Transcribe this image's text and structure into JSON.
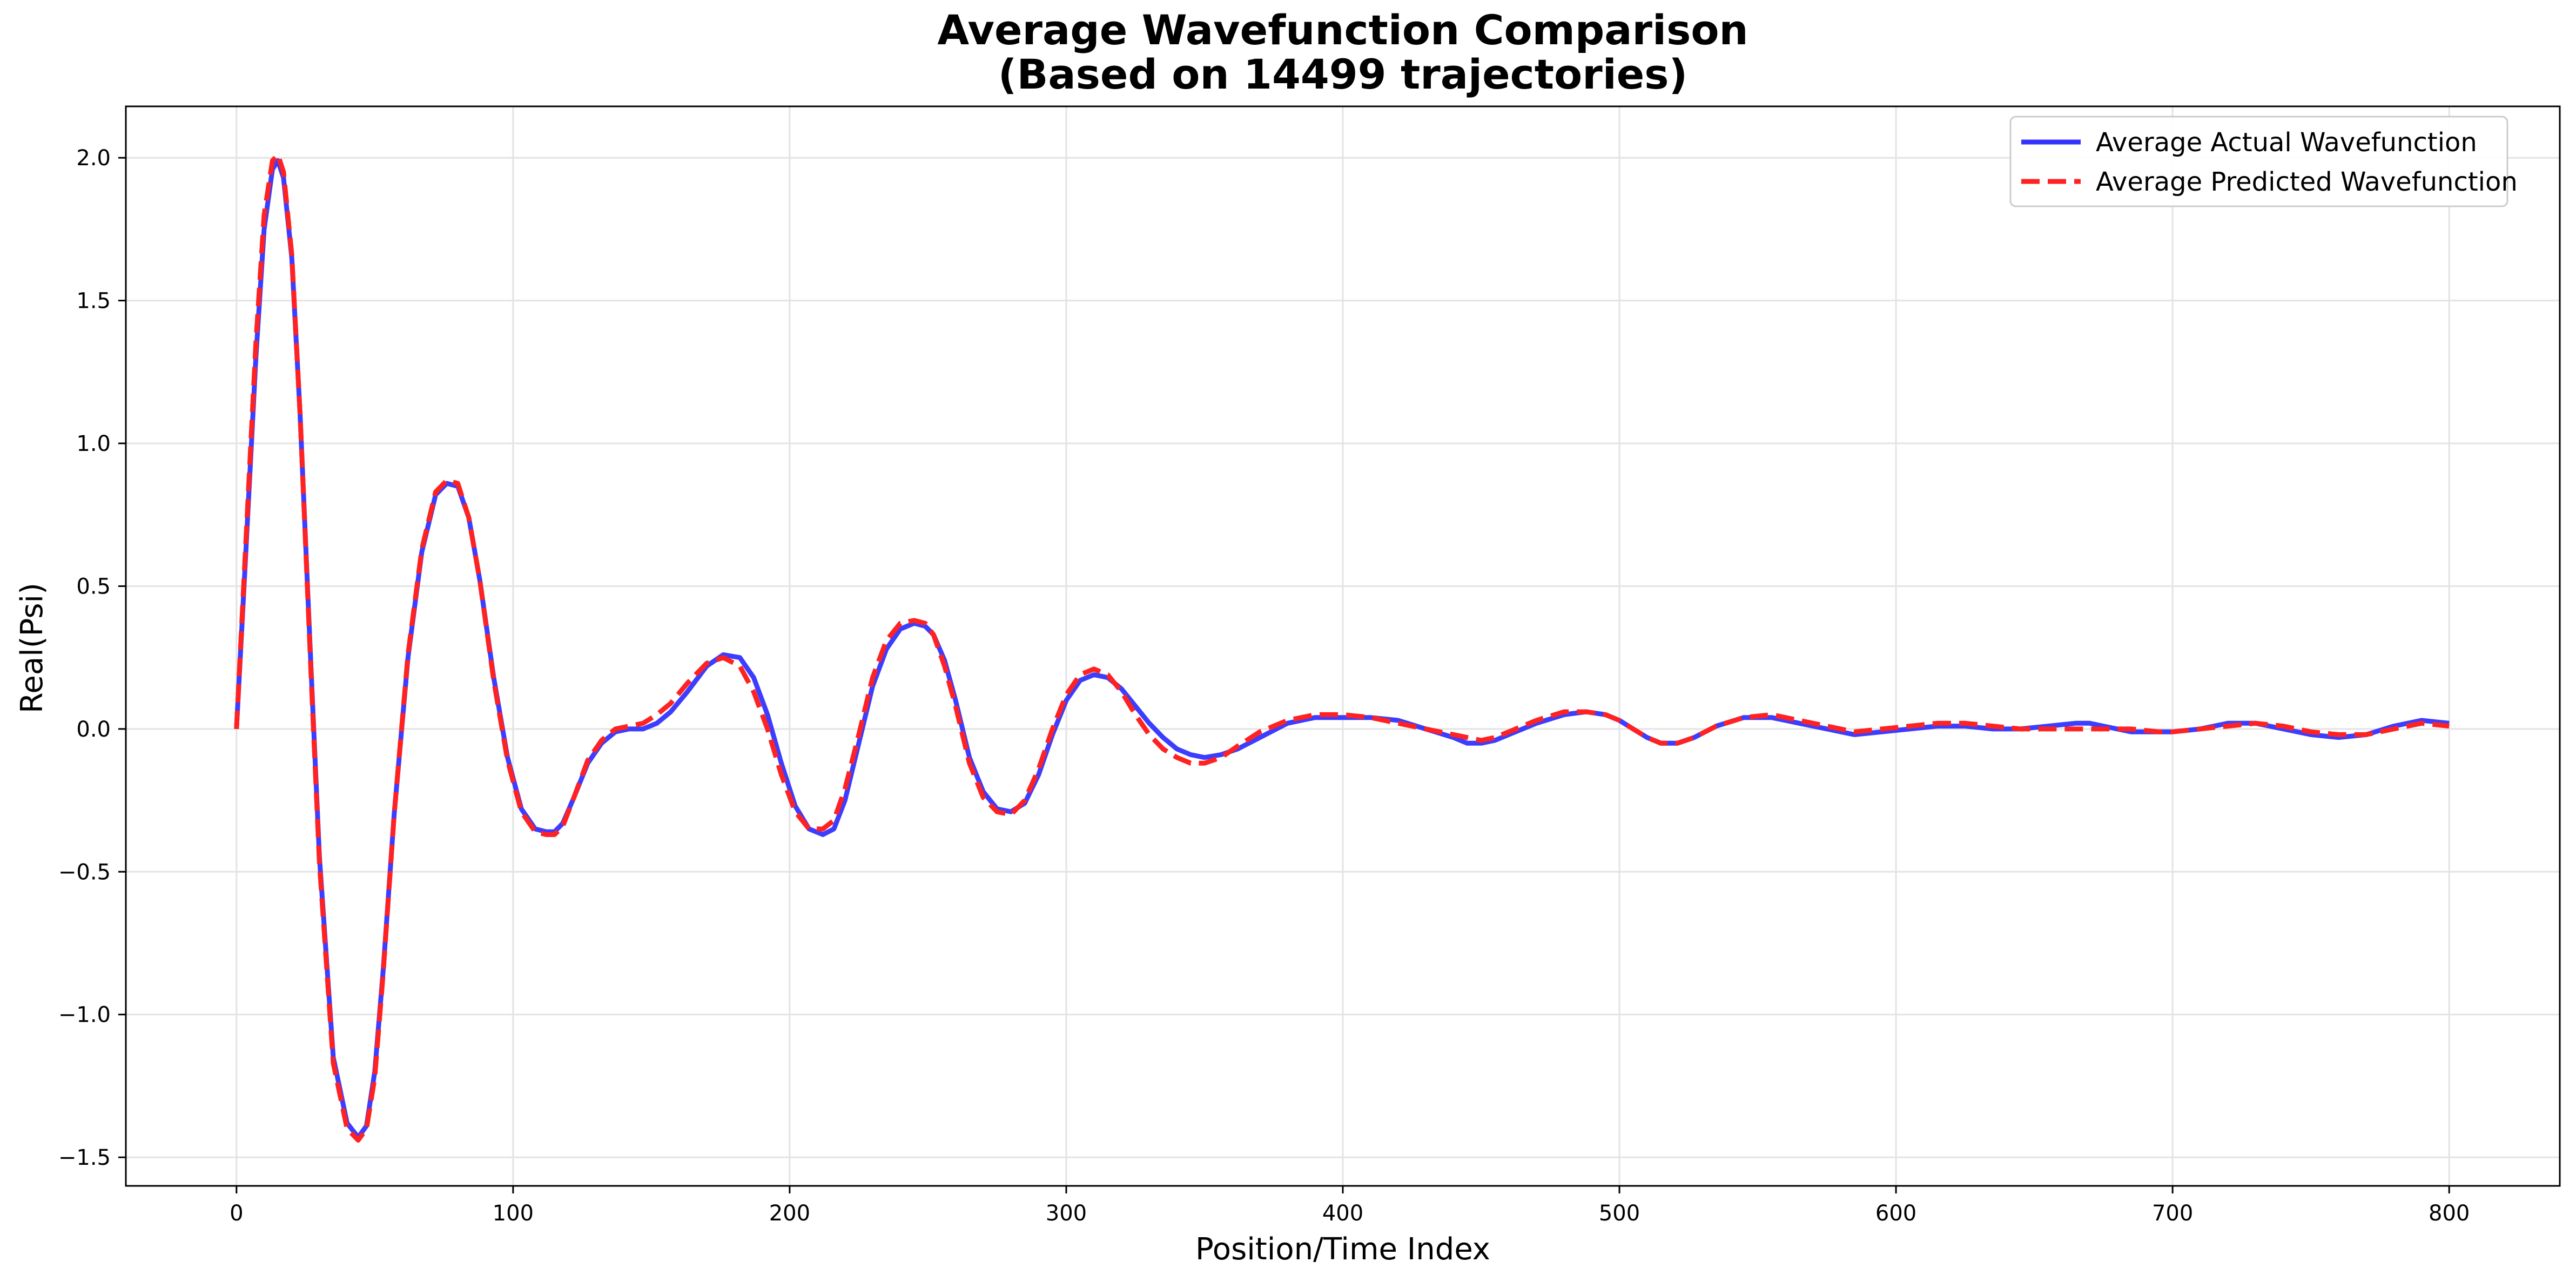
{
  "chart_data": {
    "type": "line",
    "title": "Average Wavefunction Comparison",
    "subtitle": "(Based on 14499 trajectories)",
    "xlabel": "Position/Time Index",
    "ylabel": "Real(Psi)",
    "xlim": [
      -40,
      840
    ],
    "ylim": [
      -1.6,
      2.18
    ],
    "xticks": [
      0,
      100,
      200,
      300,
      400,
      500,
      600,
      700,
      800
    ],
    "xtick_labels": [
      "0",
      "100",
      "200",
      "300",
      "400",
      "500",
      "600",
      "700",
      "800"
    ],
    "yticks": [
      -1.5,
      -1.0,
      -0.5,
      0.0,
      0.5,
      1.0,
      1.5,
      2.0
    ],
    "ytick_labels": [
      "−1.5",
      "−1.0",
      "−0.5",
      "0.0",
      "0.5",
      "1.0",
      "1.5",
      "2.0"
    ],
    "grid": true,
    "legend_position": "top-right",
    "series": [
      {
        "name": "Average Actual Wavefunction",
        "color": "#3333ff",
        "style": "solid",
        "x": [
          0,
          3,
          7,
          10,
          13,
          15,
          17,
          20,
          23,
          27,
          30,
          35,
          40,
          44,
          47,
          50,
          53,
          57,
          62,
          67,
          72,
          76,
          80,
          84,
          88,
          93,
          98,
          103,
          108,
          112,
          115,
          118,
          122,
          127,
          132,
          137,
          142,
          147,
          152,
          157,
          163,
          170,
          176,
          182,
          187,
          192,
          197,
          202,
          207,
          212,
          216,
          220,
          225,
          230,
          235,
          240,
          245,
          249,
          252,
          256,
          260,
          265,
          270,
          275,
          280,
          285,
          290,
          295,
          300,
          305,
          310,
          315,
          320,
          325,
          330,
          335,
          340,
          345,
          350,
          356,
          362,
          370,
          380,
          390,
          400,
          410,
          420,
          430,
          440,
          445,
          450,
          455,
          460,
          470,
          480,
          488,
          495,
          500,
          505,
          510,
          515,
          521,
          527,
          535,
          545,
          555,
          565,
          575,
          585,
          595,
          605,
          615,
          625,
          635,
          645,
          655,
          665,
          670,
          675,
          685,
          695,
          700,
          710,
          720,
          730,
          740,
          750,
          760,
          770,
          780,
          790,
          800
        ],
        "y": [
          0.0,
          0.55,
          1.3,
          1.75,
          1.96,
          1.99,
          1.93,
          1.65,
          1.1,
          0.2,
          -0.45,
          -1.15,
          -1.38,
          -1.43,
          -1.39,
          -1.2,
          -0.85,
          -0.3,
          0.25,
          0.62,
          0.82,
          0.86,
          0.85,
          0.74,
          0.52,
          0.18,
          -0.1,
          -0.28,
          -0.35,
          -0.36,
          -0.36,
          -0.33,
          -0.24,
          -0.12,
          -0.05,
          -0.01,
          0.0,
          0.0,
          0.02,
          0.06,
          0.13,
          0.22,
          0.26,
          0.25,
          0.18,
          0.05,
          -0.12,
          -0.27,
          -0.35,
          -0.37,
          -0.35,
          -0.25,
          -0.05,
          0.15,
          0.28,
          0.35,
          0.37,
          0.36,
          0.33,
          0.24,
          0.1,
          -0.1,
          -0.22,
          -0.28,
          -0.29,
          -0.26,
          -0.16,
          -0.02,
          0.1,
          0.17,
          0.19,
          0.18,
          0.14,
          0.08,
          0.02,
          -0.03,
          -0.07,
          -0.09,
          -0.1,
          -0.09,
          -0.07,
          -0.03,
          0.02,
          0.04,
          0.04,
          0.04,
          0.03,
          0.0,
          -0.03,
          -0.05,
          -0.05,
          -0.04,
          -0.02,
          0.02,
          0.05,
          0.06,
          0.05,
          0.03,
          0.0,
          -0.03,
          -0.05,
          -0.05,
          -0.03,
          0.01,
          0.04,
          0.04,
          0.02,
          0.0,
          -0.02,
          -0.01,
          0.0,
          0.01,
          0.01,
          0.0,
          0.0,
          0.01,
          0.02,
          0.02,
          0.01,
          -0.01,
          -0.01,
          -0.01,
          0.0,
          0.02,
          0.02,
          0.0,
          -0.02,
          -0.03,
          -0.02,
          0.01,
          0.03,
          0.02
        ]
      },
      {
        "name": "Average Predicted Wavefunction",
        "color": "#ff2222",
        "style": "dashed",
        "x": [
          0,
          3,
          7,
          10,
          13,
          15,
          17,
          20,
          23,
          27,
          30,
          35,
          40,
          44,
          47,
          50,
          53,
          57,
          62,
          67,
          72,
          76,
          80,
          84,
          88,
          93,
          98,
          103,
          108,
          112,
          115,
          118,
          122,
          127,
          132,
          137,
          142,
          147,
          152,
          157,
          163,
          170,
          176,
          182,
          187,
          192,
          197,
          202,
          207,
          212,
          216,
          220,
          225,
          230,
          235,
          240,
          245,
          249,
          252,
          256,
          260,
          265,
          270,
          275,
          280,
          285,
          290,
          295,
          300,
          305,
          310,
          315,
          320,
          325,
          330,
          335,
          340,
          345,
          350,
          356,
          362,
          370,
          380,
          390,
          400,
          410,
          420,
          430,
          440,
          445,
          450,
          455,
          460,
          470,
          480,
          488,
          495,
          500,
          505,
          510,
          515,
          521,
          527,
          535,
          545,
          555,
          565,
          575,
          585,
          595,
          605,
          615,
          625,
          635,
          645,
          655,
          665,
          670,
          675,
          685,
          695,
          700,
          710,
          720,
          730,
          740,
          750,
          760,
          770,
          780,
          790,
          800
        ],
        "y": [
          0.0,
          0.58,
          1.35,
          1.8,
          1.99,
          2.01,
          1.95,
          1.66,
          1.1,
          0.18,
          -0.47,
          -1.17,
          -1.4,
          -1.44,
          -1.4,
          -1.22,
          -0.86,
          -0.3,
          0.26,
          0.63,
          0.83,
          0.87,
          0.86,
          0.74,
          0.52,
          0.17,
          -0.11,
          -0.29,
          -0.36,
          -0.37,
          -0.37,
          -0.34,
          -0.24,
          -0.11,
          -0.04,
          0.0,
          0.01,
          0.02,
          0.05,
          0.09,
          0.16,
          0.23,
          0.25,
          0.22,
          0.13,
          0.0,
          -0.16,
          -0.29,
          -0.35,
          -0.35,
          -0.32,
          -0.21,
          -0.02,
          0.18,
          0.31,
          0.37,
          0.38,
          0.37,
          0.33,
          0.22,
          0.08,
          -0.12,
          -0.24,
          -0.29,
          -0.3,
          -0.25,
          -0.14,
          0.0,
          0.12,
          0.19,
          0.21,
          0.19,
          0.13,
          0.05,
          -0.02,
          -0.07,
          -0.1,
          -0.12,
          -0.12,
          -0.1,
          -0.06,
          -0.01,
          0.03,
          0.05,
          0.05,
          0.04,
          0.02,
          0.0,
          -0.02,
          -0.03,
          -0.04,
          -0.03,
          -0.01,
          0.03,
          0.06,
          0.06,
          0.05,
          0.03,
          0.0,
          -0.03,
          -0.05,
          -0.05,
          -0.03,
          0.01,
          0.04,
          0.05,
          0.03,
          0.01,
          -0.01,
          0.0,
          0.01,
          0.02,
          0.02,
          0.01,
          0.0,
          0.0,
          0.0,
          0.0,
          0.0,
          0.0,
          -0.01,
          -0.01,
          0.0,
          0.01,
          0.02,
          0.01,
          -0.01,
          -0.02,
          -0.02,
          0.0,
          0.02,
          0.01
        ]
      }
    ]
  }
}
